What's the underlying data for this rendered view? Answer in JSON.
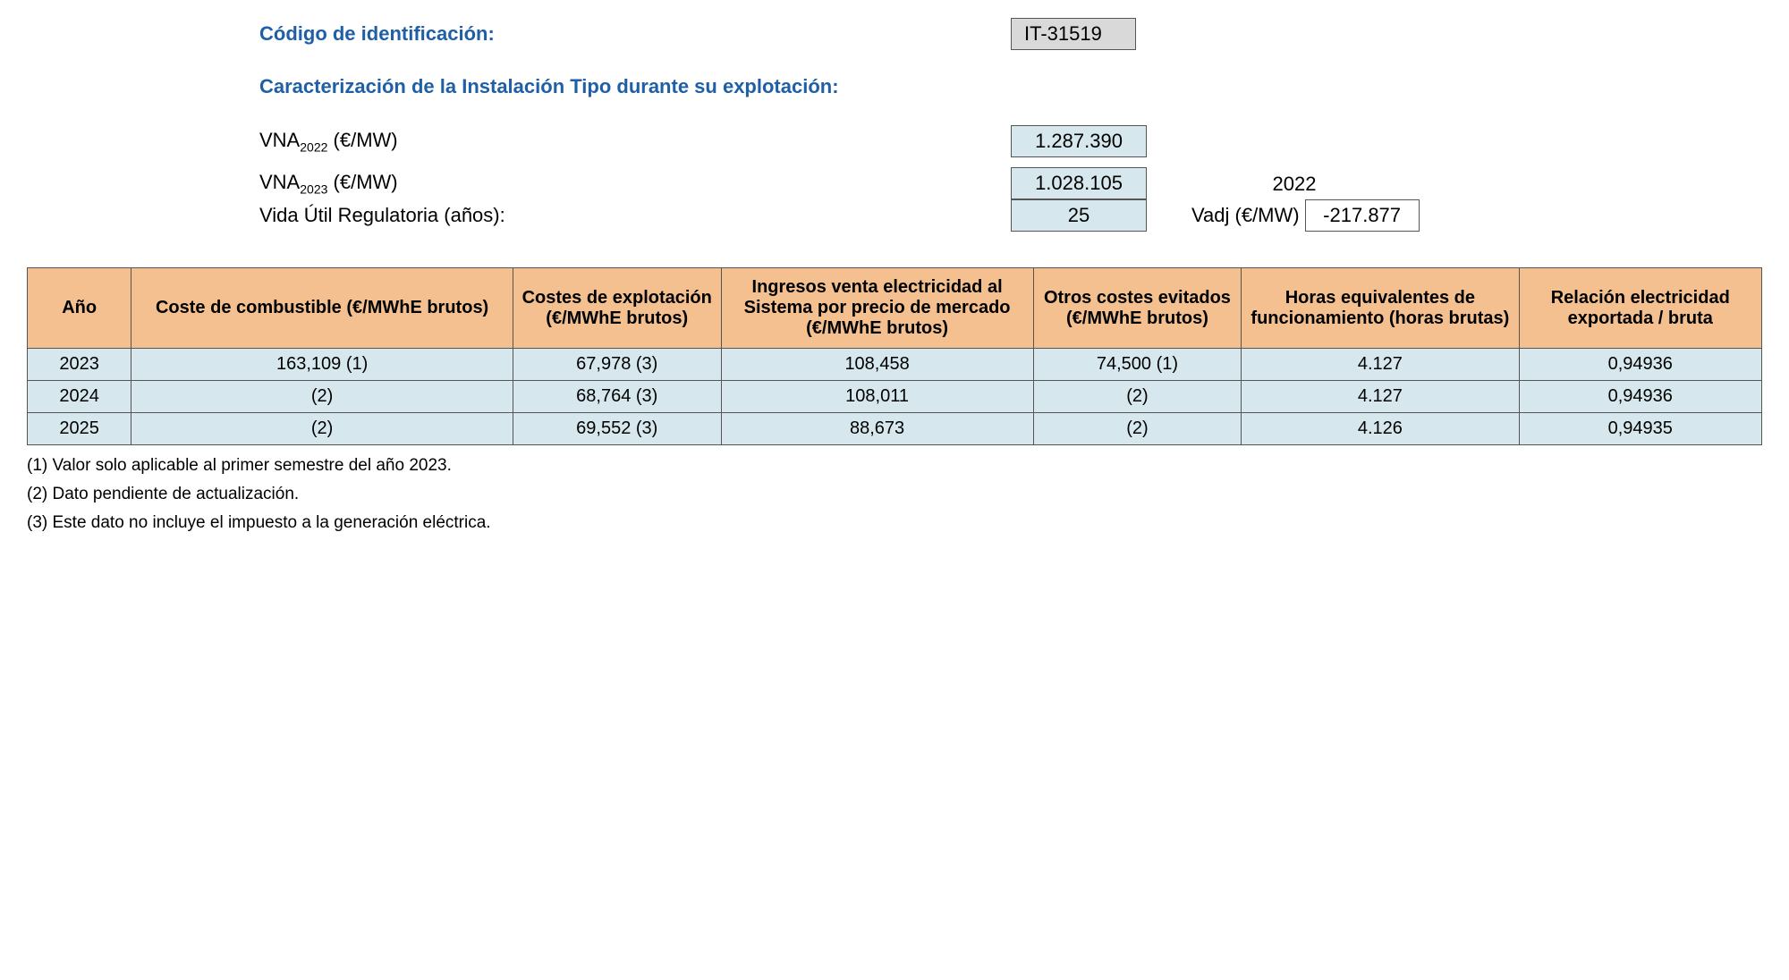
{
  "colors": {
    "heading": "#1f5fa6",
    "table_header_bg": "#f4c090",
    "value_bg": "#d6e8ed",
    "code_bg": "#d9d9d9",
    "border": "#555555",
    "text": "#000000",
    "page_bg": "#ffffff"
  },
  "fonts": {
    "family": "Arial",
    "heading_size_pt": 16,
    "body_size_pt": 15,
    "footnote_size_pt": 14
  },
  "header": {
    "code_label": "Código de identificación:",
    "code_value": "IT-31519",
    "subtitle": "Caracterización de la Instalación Tipo durante su explotación:"
  },
  "params": {
    "vna2022": {
      "label_prefix": "VNA",
      "label_sub": "2022",
      "label_suffix": " (€/MW)",
      "value": "1.287.390"
    },
    "vna2023": {
      "label_prefix": "VNA",
      "label_sub": "2023",
      "label_suffix": " (€/MW)",
      "value": "1.028.105",
      "right_year": "2022"
    },
    "vida": {
      "label": "Vida Útil Regulatoria (años):",
      "value": "25",
      "vadj_label": "Vadj (€/MW)",
      "vadj_value": "-217.877"
    }
  },
  "table": {
    "type": "table",
    "columns": [
      "Año",
      "Coste de combustible (€/MWhE brutos)",
      "Costes de explotación (€/MWhE brutos)",
      "Ingresos venta electricidad al Sistema por precio de mercado (€/MWhE brutos)",
      "Otros costes evitados (€/MWhE brutos)",
      "Horas equivalentes de funcionamiento (horas brutas)",
      "Relación electricidad exportada / bruta"
    ],
    "col_widths_pct": [
      6,
      22,
      12,
      18,
      12,
      16,
      14
    ],
    "rows": [
      [
        "2023",
        "163,109 (1)",
        "67,978 (3)",
        "108,458",
        "74,500 (1)",
        "4.127",
        "0,94936"
      ],
      [
        "2024",
        "(2)",
        "68,764 (3)",
        "108,011",
        "(2)",
        "4.127",
        "0,94936"
      ],
      [
        "2025",
        "(2)",
        "69,552 (3)",
        "88,673",
        "(2)",
        "4.126",
        "0,94935"
      ]
    ]
  },
  "footnotes": [
    "(1) Valor solo aplicable al primer semestre del año 2023.",
    "(2) Dato pendiente de actualización.",
    "(3) Este dato no incluye el impuesto a la generación eléctrica."
  ]
}
